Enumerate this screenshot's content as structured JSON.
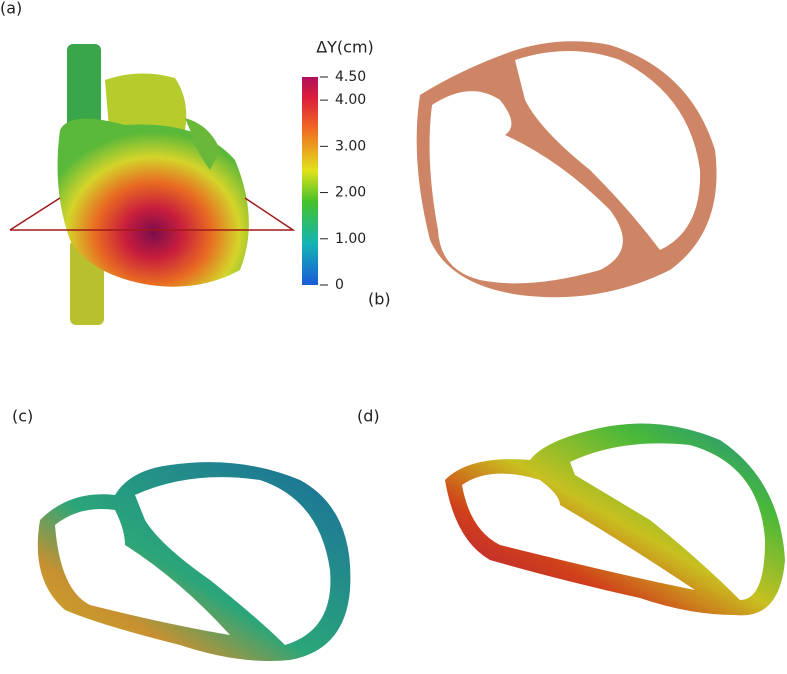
{
  "panels": [
    {
      "label": "(a)"
    },
    {
      "label": "(b)"
    },
    {
      "label": "(c)"
    },
    {
      "label": "(d)"
    }
  ],
  "colorbar": {
    "title": "ΔY(cm)",
    "lim": [
      0,
      4.5
    ],
    "ticks": [
      {
        "value": 4.5,
        "label": "4.50"
      },
      {
        "value": 4,
        "label": "4.00"
      },
      {
        "value": 3,
        "label": "3.00"
      },
      {
        "value": 2,
        "label": "2.00"
      },
      {
        "value": 1,
        "label": "1.00"
      },
      0
    ]
  }
}
